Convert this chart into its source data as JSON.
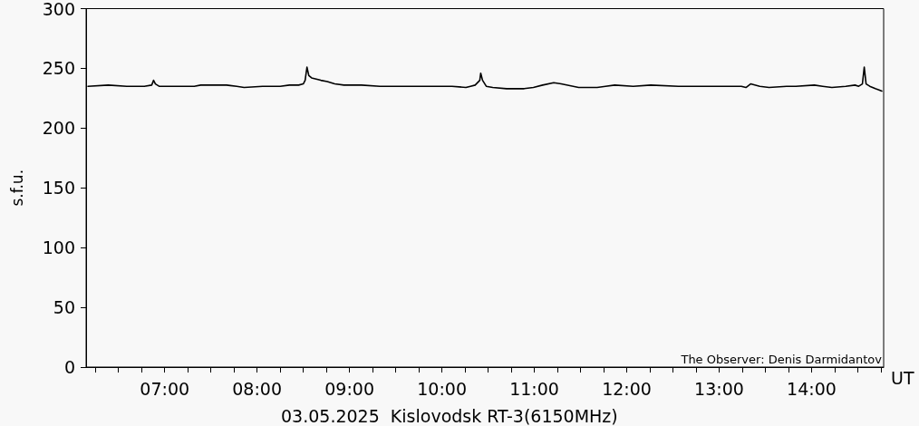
{
  "chart_data": {
    "type": "line",
    "xlabel": "UT",
    "ylabel": "s.f.u.",
    "annotations": [
      "03.05.2025  Kislovodsk RT-3(6150MHz)",
      "The Observer: Denis Darmidantov"
    ],
    "x": [
      6.17,
      6.39,
      6.59,
      6.69,
      6.78,
      6.86,
      6.88,
      6.9,
      6.94,
      7.03,
      7.18,
      7.27,
      7.32,
      7.39,
      7.57,
      7.67,
      7.78,
      7.86,
      8.06,
      8.25,
      8.35,
      8.45,
      8.5,
      8.52,
      8.54,
      8.56,
      8.59,
      8.69,
      8.76,
      8.84,
      8.94,
      9.13,
      9.33,
      9.52,
      9.72,
      9.92,
      10.11,
      10.26,
      10.31,
      10.36,
      10.41,
      10.42,
      10.44,
      10.48,
      10.55,
      10.7,
      10.89,
      10.99,
      11.09,
      11.21,
      11.29,
      11.48,
      11.68,
      11.77,
      11.87,
      12.07,
      12.26,
      12.56,
      12.75,
      13.24,
      13.29,
      13.34,
      13.44,
      13.54,
      13.73,
      13.83,
      14.03,
      14.12,
      14.22,
      14.37,
      14.47,
      14.51,
      14.55,
      14.57,
      14.59,
      14.63,
      14.69,
      14.73,
      14.76
    ],
    "series": [
      {
        "color": "#000000",
        "values": [
          235,
          236,
          235,
          235,
          235,
          236,
          240,
          237,
          235,
          235,
          235,
          235,
          235,
          236,
          236,
          236,
          235,
          234,
          235,
          235,
          236,
          236,
          237,
          240,
          251,
          244,
          242,
          240,
          239,
          237,
          236,
          236,
          235,
          235,
          235,
          235,
          235,
          234,
          235,
          236,
          240,
          246,
          240,
          235,
          234,
          233,
          233,
          234,
          236,
          238,
          237,
          234,
          234,
          235,
          236,
          235,
          236,
          235,
          235,
          235,
          234,
          237,
          235,
          234,
          235,
          235,
          236,
          235,
          234,
          235,
          236,
          235,
          237,
          251,
          237,
          235,
          233,
          232,
          231
        ]
      }
    ],
    "xlim": [
      6.15,
      14.78
    ],
    "xticks": [
      {
        "value": 6.25,
        "label": null
      },
      {
        "value": 6.5,
        "label": null
      },
      {
        "value": 6.75,
        "label": null
      },
      {
        "value": 7,
        "label": "07:00"
      },
      {
        "value": 7.25,
        "label": null
      },
      {
        "value": 7.5,
        "label": null
      },
      {
        "value": 7.75,
        "label": null
      },
      {
        "value": 8,
        "label": "08:00"
      },
      {
        "value": 8.25,
        "label": null
      },
      {
        "value": 8.5,
        "label": null
      },
      {
        "value": 8.75,
        "label": null
      },
      {
        "value": 9,
        "label": "09:00"
      },
      {
        "value": 9.25,
        "label": null
      },
      {
        "value": 9.5,
        "label": null
      },
      {
        "value": 9.75,
        "label": null
      },
      {
        "value": 10,
        "label": "10:00"
      },
      {
        "value": 10.25,
        "label": null
      },
      {
        "value": 10.5,
        "label": null
      },
      {
        "value": 10.75,
        "label": null
      },
      {
        "value": 11,
        "label": "11:00"
      },
      {
        "value": 11.25,
        "label": null
      },
      {
        "value": 11.5,
        "label": null
      },
      {
        "value": 11.75,
        "label": null
      },
      {
        "value": 12,
        "label": "12:00"
      },
      {
        "value": 12.25,
        "label": null
      },
      {
        "value": 12.5,
        "label": null
      },
      {
        "value": 12.75,
        "label": null
      },
      {
        "value": 13,
        "label": "13:00"
      },
      {
        "value": 13.25,
        "label": null
      },
      {
        "value": 13.5,
        "label": null
      },
      {
        "value": 13.75,
        "label": null
      },
      {
        "value": 14,
        "label": "14:00"
      },
      {
        "value": 14.25,
        "label": null
      },
      {
        "value": 14.5,
        "label": null
      },
      {
        "value": 14.75,
        "label": null
      }
    ],
    "ylim": [
      0,
      300
    ],
    "yticks": [
      0,
      50,
      100,
      150,
      200,
      250,
      300
    ],
    "grid": false,
    "marker": "none",
    "line_style": "solid"
  }
}
